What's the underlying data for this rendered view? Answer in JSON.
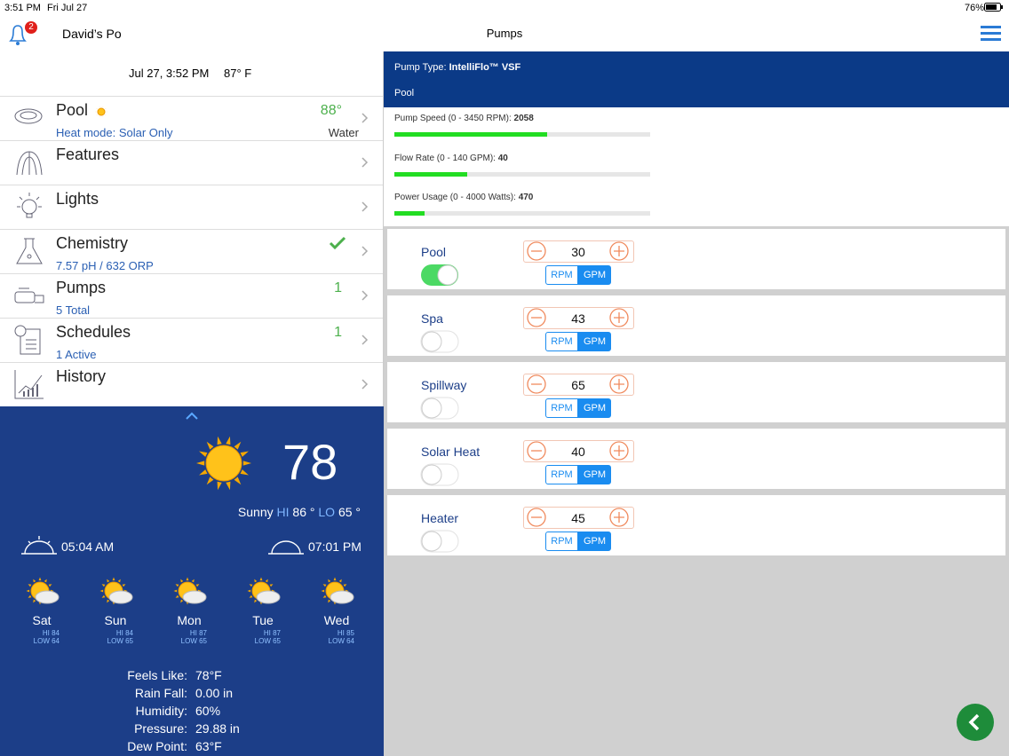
{
  "status_bar": {
    "time": "3:51 PM",
    "date": "Fri Jul 27",
    "battery": "76%"
  },
  "header": {
    "badge": "2",
    "site": "David’s Po",
    "title": "Pumps"
  },
  "left_panel": {
    "datetime": "Jul 27, 3:52 PM",
    "air_temp": "87° F",
    "menu": [
      {
        "label": "Pool",
        "value": "88°",
        "detail": "Heat mode: Solar Only",
        "note": "Water"
      },
      {
        "label": "Features"
      },
      {
        "label": "Lights"
      },
      {
        "label": "Chemistry",
        "detail": "7.57 pH / 632 ORP"
      },
      {
        "label": "Pumps",
        "value": "1",
        "detail": "5 Total"
      },
      {
        "label": "Schedules",
        "value": "1",
        "detail": "1 Active"
      },
      {
        "label": "History"
      }
    ]
  },
  "weather": {
    "temperature": "78",
    "condition": "Sunny",
    "hi_label": "HI",
    "hi": "86 °",
    "lo_label": "LO",
    "lo": "65 °",
    "sunrise": "05:04 AM",
    "sunset": "07:01 PM",
    "forecast": [
      {
        "day": "Sat",
        "hi": "HI 84",
        "low": "LOW 64"
      },
      {
        "day": "Sun",
        "hi": "HI 84",
        "low": "LOW 65"
      },
      {
        "day": "Mon",
        "hi": "HI 87",
        "low": "LOW 65"
      },
      {
        "day": "Tue",
        "hi": "HI 87",
        "low": "LOW 65"
      },
      {
        "day": "Wed",
        "hi": "HI 85",
        "low": "LOW 64"
      }
    ],
    "details": [
      {
        "label": "Feels Like:",
        "value": "78°F"
      },
      {
        "label": "Rain Fall:",
        "value": "0.00 in"
      },
      {
        "label": "Humidity:",
        "value": "60%"
      },
      {
        "label": "Pressure:",
        "value": "29.88 in"
      },
      {
        "label": "Dew Point:",
        "value": "63°F"
      }
    ]
  },
  "pump": {
    "type_label": "Pump Type:",
    "type": "IntelliFlo™ VSF",
    "name": "Pool",
    "metrics": [
      {
        "label": "Pump Speed (0 - 3450 RPM):",
        "value": 2058
      },
      {
        "label": "Flow Rate (0 - 140 GPM):",
        "value": 40
      },
      {
        "label": "Power Usage (0 - 4000 Watts):",
        "value": 470
      }
    ]
  },
  "units": {
    "options": [
      "RPM",
      "GPM"
    ],
    "selected": 1
  },
  "circuits": [
    {
      "name": "Pool",
      "speed": 30,
      "on": true
    },
    {
      "name": "Spa",
      "speed": 43,
      "on": false
    },
    {
      "name": "Spillway",
      "speed": 65,
      "on": false
    },
    {
      "name": "Solar Heat",
      "speed": 40,
      "on": false
    },
    {
      "name": "Heater",
      "speed": 45,
      "on": false
    }
  ]
}
